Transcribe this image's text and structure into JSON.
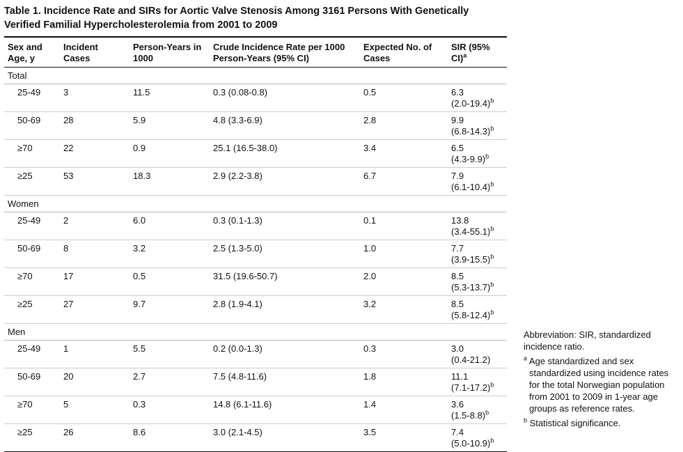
{
  "title": "Table 1. Incidence Rate and SIRs for Aortic Valve Stenosis Among 3161 Persons With Genetically Verified Familial Hypercholesterolemia from 2001 to 2009",
  "table": {
    "headers": [
      "Sex and Age, y",
      "Incident Cases",
      "Person-Years in 1000",
      "Crude Incidence Rate per 1000 Person-Years (95% CI)",
      "Expected No. of Cases",
      "SIR (95% CI)"
    ],
    "header_note": "a",
    "groups": [
      {
        "label": "Total",
        "rows": [
          [
            "25-49",
            "3",
            "11.5",
            "0.3 (0.08-0.8)",
            "0.5",
            "6.3",
            "(2.0-19.4)",
            "b"
          ],
          [
            "50-69",
            "28",
            "5.9",
            "4.8 (3.3-6.9)",
            "2.8",
            "9.9",
            "(6.8-14.3)",
            "b"
          ],
          [
            "≥70",
            "22",
            "0.9",
            "25.1 (16.5-38.0)",
            "3.4",
            "6.5",
            "(4.3-9.9)",
            "b"
          ],
          [
            "≥25",
            "53",
            "18.3",
            "2.9 (2.2-3.8)",
            "6.7",
            "7.9",
            "(6.1-10.4)",
            "b"
          ]
        ]
      },
      {
        "label": "Women",
        "rows": [
          [
            "25-49",
            "2",
            "6.0",
            "0.3 (0.1-1.3)",
            "0.1",
            "13.8",
            "(3.4-55.1)",
            "b"
          ],
          [
            "50-69",
            "8",
            "3.2",
            "2.5 (1.3-5.0)",
            "1.0",
            "7.7",
            "(3.9-15.5)",
            "b"
          ],
          [
            "≥70",
            "17",
            "0.5",
            "31.5 (19.6-50.7)",
            "2.0",
            "8.5",
            "(5.3-13.7)",
            "b"
          ],
          [
            "≥25",
            "27",
            "9.7",
            "2.8 (1.9-4.1)",
            "3.2",
            "8.5",
            "(5.8-12.4)",
            "b"
          ]
        ]
      },
      {
        "label": "Men",
        "rows": [
          [
            "25-49",
            "1",
            "5.5",
            "0.2 (0.0-1.3)",
            "0.3",
            "3.0",
            "(0.4-21.2)"
          ],
          [
            "50-69",
            "20",
            "2.7",
            "7.5 (4.8-11.6)",
            "1.8",
            "11.1",
            "(7.1-17.2)",
            "b"
          ],
          [
            "≥70",
            "5",
            "0.3",
            "14.8 (6.1-11.6)",
            "1.4",
            "3.6",
            "(1.5-8.8)",
            "b"
          ],
          [
            "≥25",
            "26",
            "8.6",
            "3.0 (2.1-4.5)",
            "3.5",
            "7.4",
            "(5.0-10.9)",
            "b"
          ]
        ]
      }
    ]
  },
  "footnotes": {
    "abbreviation": "Abbreviation: SIR, standardized incidence ratio.",
    "notes": [
      {
        "mark": "a",
        "text": "Age standardized and sex standardized using incidence rates for the total Norwegian population from 2001 to 2009 in 1-year age groups as reference rates."
      },
      {
        "mark": "b",
        "text": "Statistical significance."
      }
    ]
  }
}
